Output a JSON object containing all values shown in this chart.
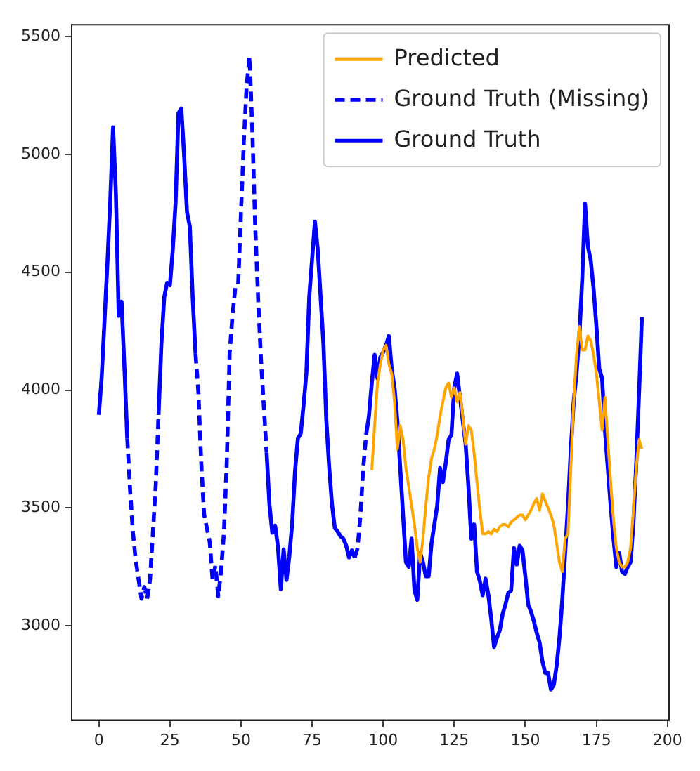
{
  "chart_data": {
    "type": "line",
    "series": [
      {
        "name": "Predicted",
        "color": "#ffa500",
        "line_style": "solid",
        "x": [
          96,
          97,
          98,
          99,
          100,
          101,
          102,
          103,
          104,
          105,
          106,
          107,
          108,
          109,
          110,
          111,
          112,
          113,
          114,
          115,
          116,
          117,
          118,
          119,
          120,
          121,
          122,
          123,
          124,
          125,
          126,
          127,
          128,
          129,
          130,
          131,
          132,
          133,
          134,
          135,
          136,
          137,
          138,
          139,
          140,
          141,
          142,
          143,
          144,
          145,
          146,
          147,
          148,
          149,
          150,
          151,
          152,
          153,
          154,
          155,
          156,
          157,
          158,
          159,
          160,
          161,
          162,
          163,
          164,
          165,
          166,
          167,
          168,
          169,
          170,
          171,
          172,
          173,
          174,
          175,
          176,
          177,
          178,
          179,
          180,
          181,
          182,
          183,
          184,
          185,
          186,
          187,
          188,
          189,
          190,
          191
        ],
        "values": [
          3660,
          3850,
          4030,
          4110,
          4170,
          4190,
          4110,
          4070,
          3950,
          3750,
          3850,
          3790,
          3670,
          3590,
          3510,
          3430,
          3330,
          3270,
          3370,
          3510,
          3630,
          3710,
          3750,
          3810,
          3890,
          3950,
          4010,
          4030,
          3970,
          4010,
          3950,
          3990,
          3890,
          3770,
          3850,
          3830,
          3730,
          3610,
          3490,
          3390,
          3390,
          3400,
          3390,
          3410,
          3400,
          3420,
          3430,
          3430,
          3420,
          3440,
          3450,
          3460,
          3470,
          3470,
          3450,
          3470,
          3490,
          3520,
          3540,
          3490,
          3560,
          3530,
          3500,
          3470,
          3430,
          3350,
          3270,
          3230,
          3370,
          3390,
          3670,
          3950,
          4150,
          4270,
          4170,
          4170,
          4230,
          4210,
          4150,
          4070,
          3950,
          3830,
          3970,
          3790,
          3610,
          3450,
          3330,
          3270,
          3250,
          3250,
          3270,
          3330,
          3490,
          3670,
          3790,
          3750
        ]
      },
      {
        "name": "Ground Truth (Missing)",
        "color": "#0000ff",
        "line_style": "dashed",
        "x": [
          10,
          11,
          12,
          13,
          14,
          15,
          16,
          17,
          18,
          19,
          20,
          21,
          25,
          34,
          35,
          36,
          37,
          38,
          39,
          40,
          41,
          42,
          43,
          44,
          45,
          46,
          47,
          48,
          49,
          50,
          51,
          52,
          53,
          54,
          55,
          56,
          57,
          58,
          59,
          75,
          90,
          91,
          92,
          93,
          94
        ],
        "values": [
          3795,
          3575,
          3395,
          3275,
          3195,
          3115,
          3165,
          3115,
          3195,
          3395,
          3595,
          3895,
          null,
          4155,
          3995,
          3695,
          3475,
          3415,
          3355,
          3195,
          3255,
          3125,
          3235,
          3395,
          3695,
          4155,
          4315,
          4435,
          4445,
          4755,
          5055,
          5295,
          5415,
          5095,
          4695,
          4395,
          4135,
          3935,
          3735,
          null,
          3290,
          3330,
          3470,
          3670,
          3810
        ]
      },
      {
        "name": "Ground Truth",
        "color": "#0000ff",
        "line_style": "solid",
        "x": [
          0,
          1,
          2,
          3,
          4,
          5,
          6,
          7,
          8,
          9,
          10,
          15,
          21,
          22,
          23,
          24,
          25,
          26,
          27,
          28,
          29,
          30,
          31,
          32,
          33,
          34,
          45,
          59,
          60,
          61,
          62,
          63,
          64,
          65,
          66,
          67,
          68,
          69,
          70,
          71,
          72,
          73,
          74,
          75,
          76,
          77,
          78,
          79,
          80,
          81,
          82,
          83,
          84,
          85,
          86,
          87,
          88,
          89,
          90,
          92,
          94,
          95,
          96,
          97,
          98,
          99,
          100,
          101,
          102,
          103,
          104,
          105,
          106,
          107,
          108,
          109,
          110,
          111,
          112,
          113,
          114,
          115,
          116,
          117,
          118,
          119,
          120,
          121,
          122,
          123,
          124,
          125,
          126,
          127,
          128,
          129,
          130,
          131,
          132,
          133,
          134,
          135,
          136,
          137,
          138,
          139,
          140,
          141,
          142,
          143,
          144,
          145,
          146,
          147,
          148,
          149,
          150,
          151,
          152,
          153,
          154,
          155,
          156,
          157,
          158,
          159,
          160,
          161,
          162,
          163,
          164,
          165,
          166,
          167,
          168,
          169,
          170,
          171,
          172,
          173,
          174,
          175,
          176,
          177,
          178,
          179,
          180,
          181,
          182,
          183,
          184,
          185,
          186,
          187,
          188,
          189,
          190,
          191
        ],
        "values": [
          3895,
          4055,
          4295,
          4535,
          4795,
          5115,
          4835,
          4315,
          4375,
          4095,
          3795,
          null,
          3895,
          4195,
          4395,
          4455,
          4445,
          4595,
          4795,
          5175,
          5195,
          4995,
          4755,
          4695,
          4395,
          4155,
          null,
          3735,
          3515,
          3395,
          3425,
          3335,
          3155,
          3325,
          3195,
          3295,
          3435,
          3655,
          3795,
          3815,
          3935,
          4075,
          4395,
          4555,
          4715,
          4595,
          4395,
          4195,
          3875,
          3675,
          3515,
          3415,
          3400,
          3380,
          3370,
          3340,
          3290,
          3320,
          3290,
          null,
          3810,
          3890,
          4030,
          4150,
          4050,
          4140,
          4160,
          4190,
          4230,
          4090,
          4010,
          3870,
          3670,
          3470,
          3270,
          3250,
          3370,
          3150,
          3110,
          3310,
          3270,
          3210,
          3210,
          3350,
          3430,
          3510,
          3670,
          3610,
          3690,
          3790,
          3810,
          4010,
          4070,
          3970,
          3870,
          3770,
          3590,
          3370,
          3430,
          3230,
          3190,
          3130,
          3200,
          3130,
          3030,
          2910,
          2950,
          2980,
          3050,
          3090,
          3140,
          3150,
          3330,
          3260,
          3340,
          3320,
          3210,
          3090,
          3060,
          3020,
          2970,
          2930,
          2850,
          2800,
          2800,
          2730,
          2750,
          2830,
          2950,
          3110,
          3310,
          3510,
          3750,
          3950,
          4070,
          4230,
          4470,
          4790,
          4610,
          4550,
          4430,
          4270,
          4090,
          4050,
          3830,
          3670,
          3510,
          3370,
          3250,
          3310,
          3230,
          3220,
          3250,
          3270,
          3430,
          3690,
          3990,
          4310
        ]
      }
    ],
    "xlim": [
      -9.55,
      200.55
    ],
    "xticks": [
      0,
      25,
      50,
      75,
      100,
      125,
      150,
      175,
      200
    ],
    "ylim": [
      2600,
      5550
    ],
    "yticks": [
      3000,
      3500,
      4000,
      4500,
      5000,
      5500
    ],
    "legend": "top right"
  }
}
